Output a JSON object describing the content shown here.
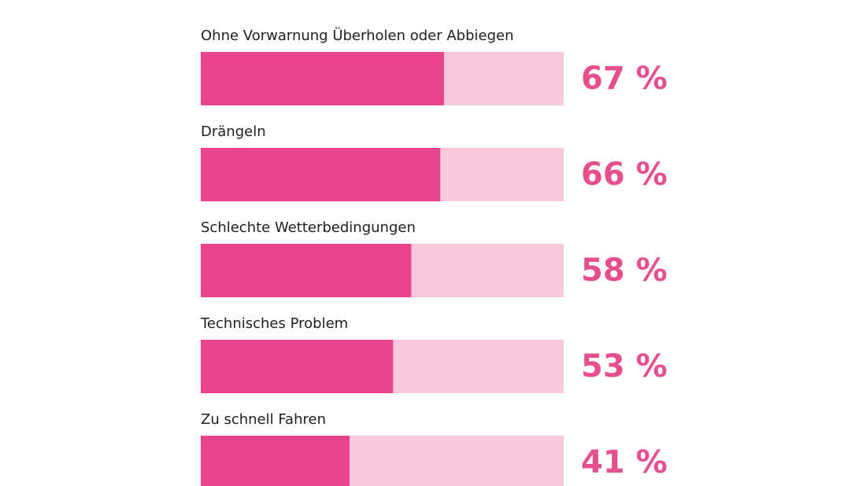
{
  "chart_data": {
    "type": "bar",
    "categories": [
      "Ohne Vorwarnung Überholen oder Abbiegen",
      "Drängeln",
      "Schlechte Wetterbedingungen",
      "Technisches Problem",
      "Zu schnell Fahren"
    ],
    "values": [
      67,
      66,
      58,
      53,
      41
    ],
    "value_labels": [
      "67 %",
      "66 %",
      "58 %",
      "53 %",
      "41 %"
    ],
    "color": "#e9448e",
    "track_color": "#f9c8dd",
    "label_color": "#e64f8f",
    "xlim": [
      0,
      100
    ]
  }
}
